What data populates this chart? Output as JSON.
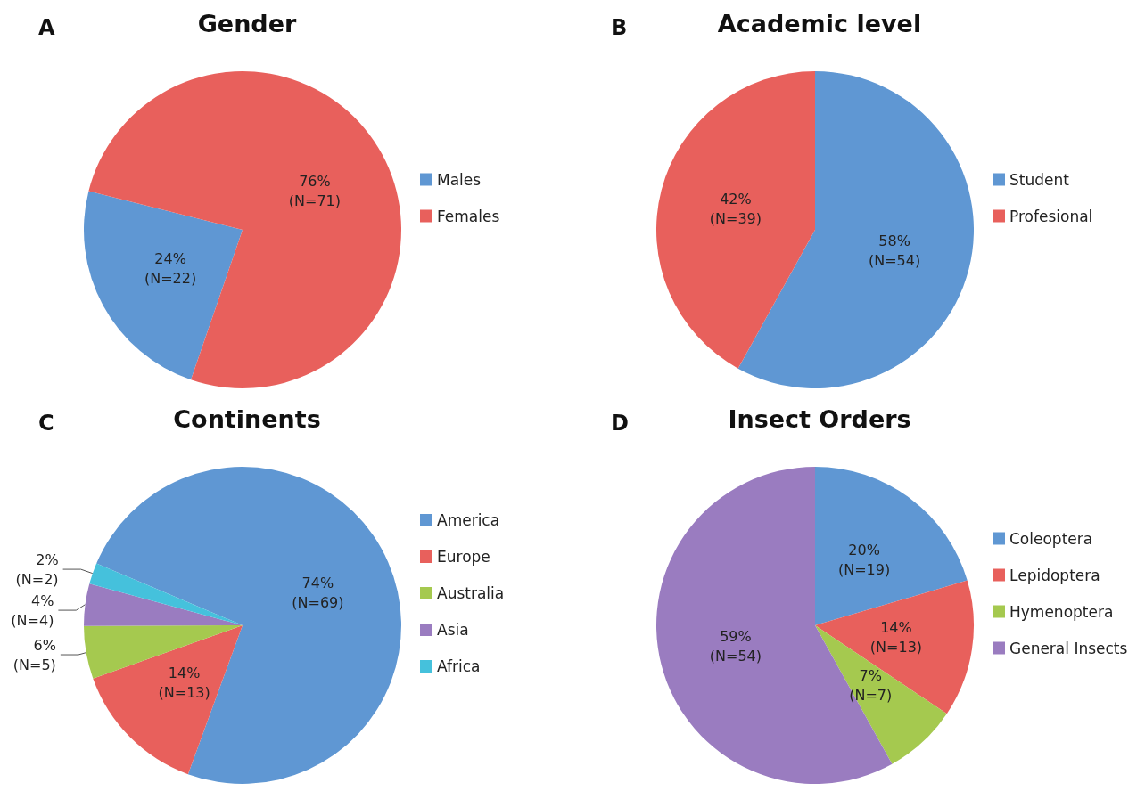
{
  "chart_data": [
    {
      "type": "pie",
      "title": "Gender",
      "annotations": [
        "A"
      ],
      "categories": [
        "Males",
        "Females"
      ],
      "values": [
        22,
        71
      ],
      "colors": [
        "#5f97d3",
        "#e8605c"
      ],
      "value_labels": [
        "24%\n(N=22)",
        "76%\n(N=71)"
      ],
      "legend": "right"
    },
    {
      "type": "pie",
      "title": "Academic level",
      "annotations": [
        "B"
      ],
      "categories": [
        "Student",
        "Profesional"
      ],
      "values": [
        54,
        39
      ],
      "colors": [
        "#5f97d3",
        "#e8605c"
      ],
      "value_labels": [
        "58%\n(N=54)",
        "42%\n(N=39)"
      ],
      "legend": "right"
    },
    {
      "type": "pie",
      "title": "Continents",
      "annotations": [
        "C"
      ],
      "categories": [
        "America",
        "Europe",
        "Australia",
        "Asia",
        "Africa"
      ],
      "values": [
        69,
        13,
        5,
        4,
        2
      ],
      "colors": [
        "#5f97d3",
        "#e8605c",
        "#a5c94f",
        "#9a7cc0",
        "#45c1dc"
      ],
      "value_labels": [
        "74%\n(N=69)",
        "14%\n(N=13)",
        "6%\n(N=5)",
        "4%\n(N=4)",
        "2%\n(N=2)"
      ],
      "legend": "right"
    },
    {
      "type": "pie",
      "title": "Insect Orders",
      "annotations": [
        "D"
      ],
      "categories": [
        "Coleoptera",
        "Lepidoptera",
        "Hymenoptera",
        "General Insects"
      ],
      "values": [
        19,
        13,
        7,
        54
      ],
      "colors": [
        "#5f97d3",
        "#e8605c",
        "#a5c94f",
        "#9a7cc0"
      ],
      "value_labels": [
        "20%\n(N=19)",
        "14%\n(N=13)",
        "7%\n(N=7)",
        "59%\n(N=54)"
      ],
      "legend": "right"
    }
  ]
}
